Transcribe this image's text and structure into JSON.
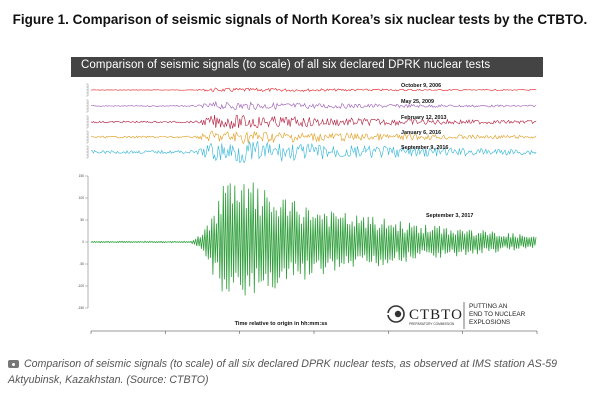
{
  "figure_title": "Figure 1. Comparison of seismic signals of North Korea’s six nuclear tests by the CTBTO.",
  "caption": "Comparison of seismic signals (to scale) of all six declared DPRK nuclear tests, as observed at IMS station AS-59 Aktyubinsk, Kazakhstan. (Source: CTBTO)",
  "caption_icon": "camera-icon",
  "logo": {
    "name": "CTBTO",
    "sub": "PREPARATORY COMMISSION",
    "tagline": [
      "PUTTING AN",
      "END TO NUCLEAR",
      "EXPLOSIONS"
    ]
  },
  "colors": {
    "banner": "#444444",
    "events": [
      "#e11b22",
      "#9b59b6",
      "#b01c3c",
      "#e39a1b",
      "#30b5d6",
      "#2e9e3a"
    ]
  },
  "chart_data": {
    "type": "line",
    "title": "Comparison of seismic signals (to scale) of all six declared DPRK nuclear tests",
    "xlabel": "Time relative to origin in hh:mm:ss",
    "ylabel": "",
    "series": [
      {
        "name": "October 9, 2006",
        "peak_amplitude": 2
      },
      {
        "name": "May 25, 2009",
        "peak_amplitude": 4
      },
      {
        "name": "February 12, 2013",
        "peak_amplitude": 7
      },
      {
        "name": "January 6, 2016",
        "peak_amplitude": 7
      },
      {
        "name": "September 9, 2016",
        "peak_amplitude": 12
      },
      {
        "name": "September 3, 2017",
        "peak_amplitude": 150
      }
    ],
    "main_trace": {
      "name": "September 3, 2017",
      "ylim": [
        -150,
        150
      ],
      "yticks": [
        150,
        100,
        50,
        0,
        -50,
        -100,
        -150
      ],
      "envelope": [
        [
          0,
          0
        ],
        [
          0.22,
          0
        ],
        [
          0.25,
          20
        ],
        [
          0.28,
          90
        ],
        [
          0.3,
          150
        ],
        [
          0.33,
          130
        ],
        [
          0.36,
          140
        ],
        [
          0.4,
          110
        ],
        [
          0.45,
          95
        ],
        [
          0.55,
          70
        ],
        [
          0.65,
          55
        ],
        [
          0.75,
          40
        ],
        [
          0.85,
          30
        ],
        [
          0.95,
          20
        ],
        [
          1.0,
          12
        ]
      ]
    },
    "grid": false,
    "legend": "labels-above-traces"
  }
}
